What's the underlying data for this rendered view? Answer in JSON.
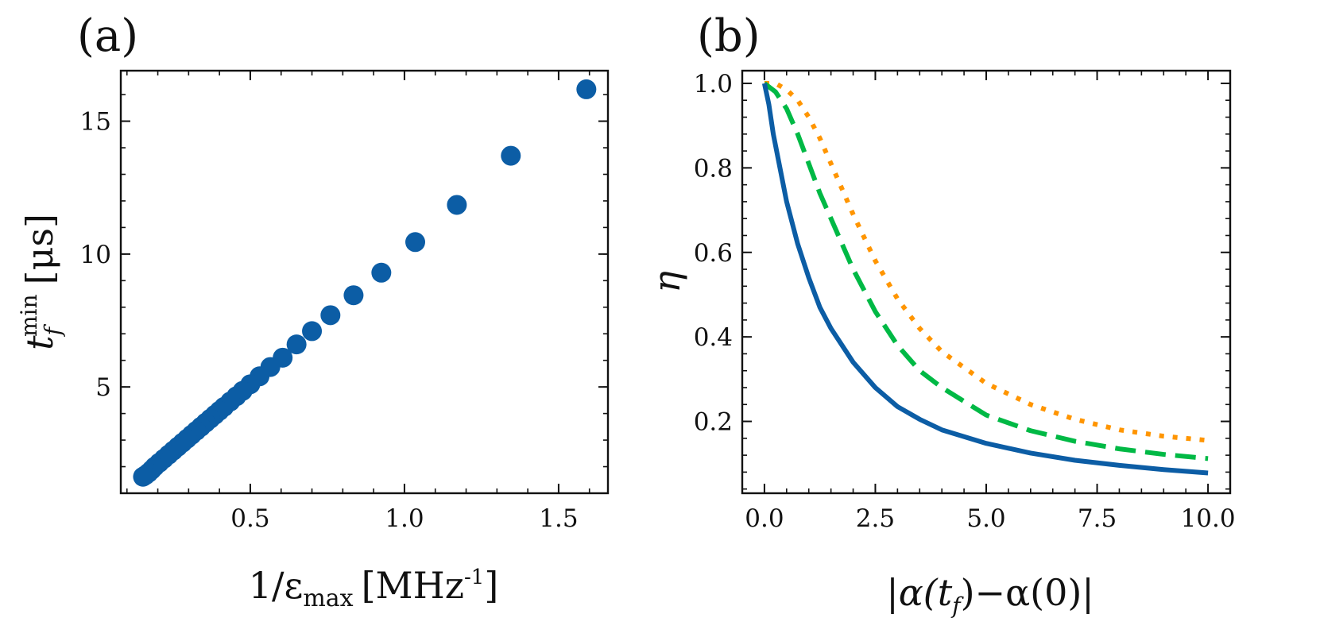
{
  "chart_data": [
    {
      "type": "scatter",
      "panel_label": "(a)",
      "xlabel": "1/εmax [MHz-1]",
      "xlabel_parts": {
        "main": "1/ε",
        "sub": "max",
        "unit": "[MHz",
        "sup": "-1",
        "close": "]"
      },
      "ylabel": "tf min [μs]",
      "ylabel_parts": {
        "main": "t",
        "sub": "f",
        "sup": "min",
        "unit": "[μs]"
      },
      "xlim": [
        0.08,
        1.66
      ],
      "ylim": [
        1.0,
        16.9
      ],
      "xticks": [
        0.5,
        1.0,
        1.5
      ],
      "xtick_labels": [
        "0.5",
        "1.0",
        "1.5"
      ],
      "yticks": [
        5,
        10,
        15
      ],
      "ytick_labels": [
        "5",
        "10",
        "15"
      ],
      "color": "#0C5DA5",
      "points": [
        [
          1.59,
          16.2
        ],
        [
          1.345,
          13.7
        ],
        [
          1.17,
          11.85
        ],
        [
          1.035,
          10.45
        ],
        [
          0.925,
          9.3
        ],
        [
          0.835,
          8.45
        ],
        [
          0.76,
          7.7
        ],
        [
          0.7,
          7.1
        ],
        [
          0.65,
          6.6
        ],
        [
          0.605,
          6.1
        ],
        [
          0.565,
          5.75
        ],
        [
          0.53,
          5.4
        ],
        [
          0.5,
          5.1
        ],
        [
          0.475,
          4.85
        ],
        [
          0.455,
          4.65
        ],
        [
          0.435,
          4.45
        ],
        [
          0.415,
          4.25
        ],
        [
          0.4,
          4.1
        ],
        [
          0.385,
          3.95
        ],
        [
          0.37,
          3.8
        ],
        [
          0.355,
          3.65
        ],
        [
          0.34,
          3.5
        ],
        [
          0.325,
          3.35
        ],
        [
          0.31,
          3.2
        ],
        [
          0.295,
          3.05
        ],
        [
          0.28,
          2.9
        ],
        [
          0.265,
          2.75
        ],
        [
          0.25,
          2.6
        ],
        [
          0.235,
          2.45
        ],
        [
          0.22,
          2.3
        ],
        [
          0.205,
          2.15
        ],
        [
          0.19,
          2.0
        ],
        [
          0.18,
          1.88
        ],
        [
          0.17,
          1.77
        ],
        [
          0.16,
          1.68
        ],
        [
          0.152,
          1.62
        ]
      ]
    },
    {
      "type": "line",
      "panel_label": "(b)",
      "xlabel": "|α(tf)−α(0)|",
      "xlabel_parts": {
        "a": "|α(t",
        "sub": "f",
        "b": ")−α(0)|"
      },
      "ylabel": "η",
      "xlim": [
        -0.5,
        10.5
      ],
      "ylim": [
        0.03,
        1.03
      ],
      "xticks": [
        0.0,
        2.5,
        5.0,
        7.5,
        10.0
      ],
      "xtick_labels": [
        "0.0",
        "2.5",
        "5.0",
        "7.5",
        "10.0"
      ],
      "yticks": [
        0.2,
        0.4,
        0.6,
        0.8,
        1.0
      ],
      "ytick_labels": [
        "0.2",
        "0.4",
        "0.6",
        "0.8",
        "1.0"
      ],
      "series": [
        {
          "name": "solid",
          "color": "#0C5DA5",
          "dash": "solid",
          "x": [
            0,
            0.1,
            0.2,
            0.35,
            0.5,
            0.75,
            1.0,
            1.25,
            1.5,
            2.0,
            2.5,
            3.0,
            3.5,
            4.0,
            5.0,
            6.0,
            7.0,
            8.0,
            9.0,
            10.0
          ],
          "y": [
            1.0,
            0.95,
            0.88,
            0.8,
            0.72,
            0.62,
            0.54,
            0.47,
            0.42,
            0.34,
            0.28,
            0.235,
            0.205,
            0.18,
            0.148,
            0.125,
            0.108,
            0.096,
            0.086,
            0.078
          ]
        },
        {
          "name": "dashed",
          "color": "#00B945",
          "dash": "dashed",
          "x": [
            0,
            0.25,
            0.5,
            0.75,
            1.0,
            1.25,
            1.5,
            2.0,
            2.5,
            3.0,
            3.5,
            4.0,
            5.0,
            6.0,
            7.0,
            8.0,
            9.0,
            10.0
          ],
          "y": [
            1.0,
            0.98,
            0.94,
            0.88,
            0.81,
            0.74,
            0.68,
            0.56,
            0.46,
            0.38,
            0.32,
            0.28,
            0.215,
            0.178,
            0.153,
            0.135,
            0.122,
            0.112
          ]
        },
        {
          "name": "dotted",
          "color": "#FF9500",
          "dash": "dotted",
          "x": [
            0,
            0.25,
            0.5,
            0.75,
            1.0,
            1.25,
            1.5,
            1.75,
            2.0,
            2.5,
            3.0,
            3.5,
            4.0,
            5.0,
            6.0,
            7.0,
            8.0,
            9.0,
            10.0
          ],
          "y": [
            1.0,
            1.0,
            0.985,
            0.96,
            0.92,
            0.87,
            0.81,
            0.75,
            0.69,
            0.58,
            0.49,
            0.42,
            0.365,
            0.29,
            0.24,
            0.205,
            0.18,
            0.165,
            0.155
          ]
        }
      ]
    }
  ]
}
